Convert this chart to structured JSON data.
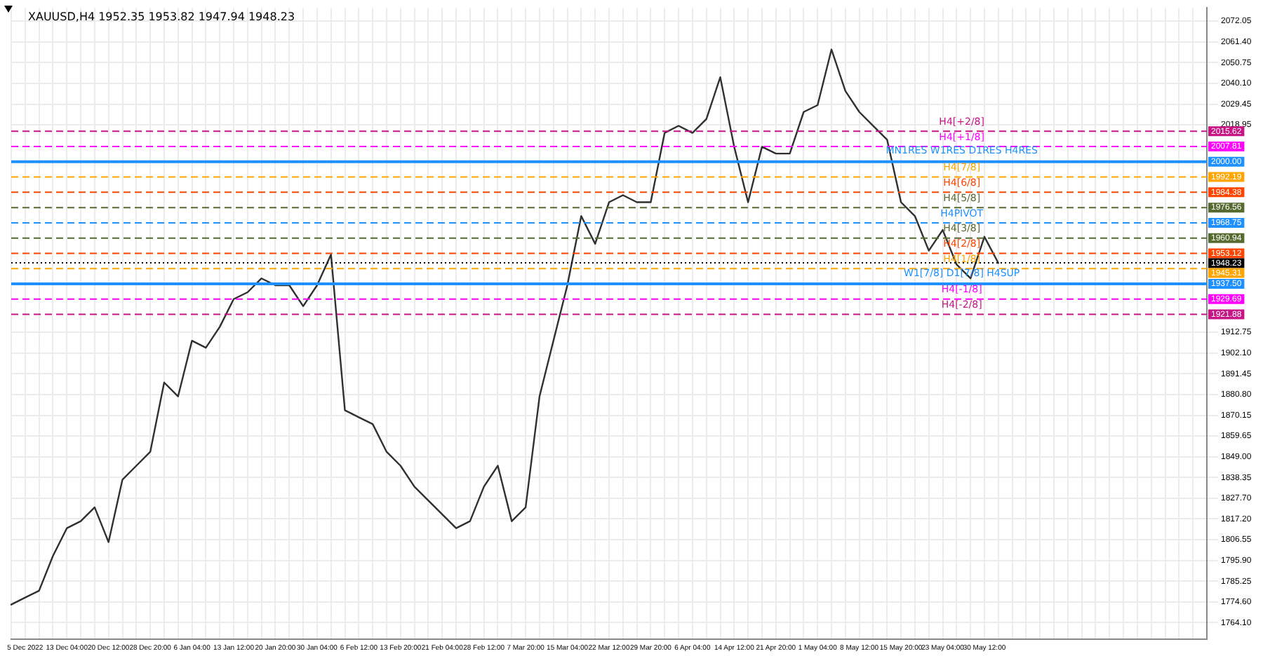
{
  "chart_data": {
    "type": "line",
    "title": "XAUUSD,H4 1952.35 1953.82 1947.94 1948.23",
    "categories": [
      null,
      "5 Dec 2022",
      null,
      null,
      "13 Dec 04:00",
      null,
      null,
      "20 Dec 12:00",
      null,
      null,
      "28 Dec 20:00",
      null,
      null,
      "6 Jan 04:00",
      null,
      null,
      "13 Jan 12:00",
      null,
      null,
      "20 Jan 20:00",
      null,
      null,
      "30 Jan 04:00",
      null,
      null,
      "6 Feb 12:00",
      null,
      null,
      "13 Feb 20:00",
      null,
      null,
      "21 Feb 04:00",
      null,
      null,
      "28 Feb 12:00",
      null,
      null,
      "7 Mar 20:00",
      null,
      null,
      "15 Mar 04:00",
      null,
      null,
      "22 Mar 12:00",
      null,
      null,
      "29 Mar 20:00",
      null,
      null,
      "6 Apr 04:00",
      null,
      null,
      "14 Apr 12:00",
      null,
      null,
      "21 Apr 20:00",
      null,
      null,
      "1 May 04:00",
      null,
      null,
      "8 May 12:00",
      null,
      null,
      "15 May 20:00",
      null,
      null,
      "23 May 04:00",
      null,
      null,
      "30 May 12:00",
      null,
      null,
      null,
      null,
      null,
      null,
      null,
      null,
      null,
      null,
      null,
      null,
      null,
      null,
      null,
      null
    ],
    "series": [
      {
        "color": "#303030",
        "values": [
          1773.3,
          1776.9,
          1780.4,
          1798.2,
          1812.4,
          1816.0,
          1823.1,
          1805.3,
          1837.3,
          1844.4,
          1851.5,
          1887.0,
          1879.9,
          1908.4,
          1904.8,
          1915.5,
          1929.7,
          1933.2,
          1940.3,
          1936.8,
          1936.8,
          1926.1,
          1936.8,
          1952.5,
          1872.8,
          1869.2,
          1865.7,
          1851.5,
          1844.4,
          1833.7,
          1826.6,
          1819.5,
          1812.4,
          1816.0,
          1833.7,
          1844.4,
          1816.0,
          1823.1,
          1879.9,
          1908.4,
          1936.8,
          1972.2,
          1958.0,
          1979.3,
          1982.9,
          1979.3,
          1979.3,
          2014.8,
          2018.4,
          2014.8,
          2021.9,
          2043.3,
          2007.7,
          1979.3,
          2007.7,
          2004.2,
          2004.2,
          2025.5,
          2029.0,
          2057.5,
          2036.2,
          2025.5,
          2018.4,
          2011.3,
          1979.3,
          1972.2,
          1954.5,
          1965.1,
          1947.4,
          1940.3,
          1961.6,
          1948.2,
          null,
          null,
          null,
          null,
          null,
          null,
          null,
          null,
          null,
          null,
          null,
          null,
          null,
          null,
          null
        ]
      }
    ],
    "ylim": [
      1755.6,
      2078.8
    ],
    "yticks": [
      {
        "value": 2072.05,
        "label": "2072.05"
      },
      {
        "value": 2061.4,
        "label": "2061.40"
      },
      {
        "value": 2050.75,
        "label": "2050.75"
      },
      {
        "value": 2040.1,
        "label": "2040.10"
      },
      {
        "value": 2029.45,
        "label": "2029.45"
      },
      {
        "value": 2018.95,
        "label": "2018.95"
      },
      {
        "value": 1912.75,
        "label": "1912.75"
      },
      {
        "value": 1902.1,
        "label": "1902.10"
      },
      {
        "value": 1891.45,
        "label": "1891.45"
      },
      {
        "value": 1880.8,
        "label": "1880.80"
      },
      {
        "value": 1870.15,
        "label": "1870.15"
      },
      {
        "value": 1859.65,
        "label": "1859.65"
      },
      {
        "value": 1849,
        "label": "1849.00"
      },
      {
        "value": 1838.35,
        "label": "1838.35"
      },
      {
        "value": 1827.7,
        "label": "1827.70"
      },
      {
        "value": 1817.2,
        "label": "1817.20"
      },
      {
        "value": 1806.55,
        "label": "1806.55"
      },
      {
        "value": 1795.9,
        "label": "1795.90"
      },
      {
        "value": 1785.25,
        "label": "1785.25"
      },
      {
        "value": 1774.6,
        "label": "1774.60"
      },
      {
        "value": 1764.1,
        "label": "1764.10"
      }
    ],
    "grid": true,
    "legend": false,
    "marker": "none",
    "line_style": "solid",
    "ref_lines": [
      {
        "axis": "y",
        "value": 2015.62,
        "label": "2015.62",
        "color": "#c71585",
        "line_style": "dashed"
      },
      {
        "axis": "y",
        "value": 2007.81,
        "label": "2007.81",
        "color": "#ff00ff",
        "line_style": "dashed"
      },
      {
        "axis": "y",
        "value": 2000.0,
        "label": "2000.00",
        "color": "#1e90ff",
        "line_style": "solid"
      },
      {
        "axis": "y",
        "value": 1992.19,
        "label": "1992.19",
        "color": "#ffa500",
        "line_style": "dashed"
      },
      {
        "axis": "y",
        "value": 1984.38,
        "label": "1984.38",
        "color": "#ff4500",
        "line_style": "dashed"
      },
      {
        "axis": "y",
        "value": 1976.56,
        "label": "1976.56",
        "color": "#556b2f",
        "line_style": "dashed"
      },
      {
        "axis": "y",
        "value": 1968.75,
        "label": "1968.75",
        "color": "#1e90ff",
        "line_style": "dashed"
      },
      {
        "axis": "y",
        "value": 1960.94,
        "label": "1960.94",
        "color": "#556b2f",
        "line_style": "dashed"
      },
      {
        "axis": "y",
        "value": 1953.12,
        "label": "1953.12",
        "color": "#ff4500",
        "line_style": "dashed"
      },
      {
        "axis": "y",
        "value": 1948.23,
        "label": "1948.23",
        "color": "#000000",
        "line_style": "dotted"
      },
      {
        "axis": "y",
        "value": 1945.31,
        "label": "1945.31",
        "color": "#ffa500",
        "line_style": "dashed"
      },
      {
        "axis": "y",
        "value": 1937.5,
        "label": "1937.50",
        "color": "#1e90ff",
        "line_style": "solid"
      },
      {
        "axis": "y",
        "value": 1929.69,
        "label": "1929.69",
        "color": "#ff00ff",
        "line_style": "dashed"
      },
      {
        "axis": "y",
        "value": 1921.88,
        "label": "1921.88",
        "color": "#c71585",
        "line_style": "dashed"
      }
    ],
    "annotations": [
      {
        "text": "H4[+2/8]",
        "y": 2015.62
      },
      {
        "text": "H4[+1/8]",
        "y": 2007.81
      },
      {
        "text": "MN1RES W1RES D1RES H4RES",
        "y": 2000.0
      },
      {
        "text": "H4[7/8]",
        "y": 1992.19
      },
      {
        "text": "H4[6/8]",
        "y": 1984.38
      },
      {
        "text": "H4[5/8]",
        "y": 1976.56
      },
      {
        "text": "H4PIVOT",
        "y": 1968.75
      },
      {
        "text": "H4[3/8]",
        "y": 1960.94
      },
      {
        "text": "H4[2/8]",
        "y": 1953.12
      },
      {
        "text": "H4[1/8]",
        "y": 1945.31
      },
      {
        "text": "W1[7/8] D1[7/8] H4SUP",
        "y": 1937.5
      },
      {
        "text": "H4[-1/8]",
        "y": 1929.69
      },
      {
        "text": "H4[-2/8]",
        "y": 1921.88
      }
    ]
  }
}
